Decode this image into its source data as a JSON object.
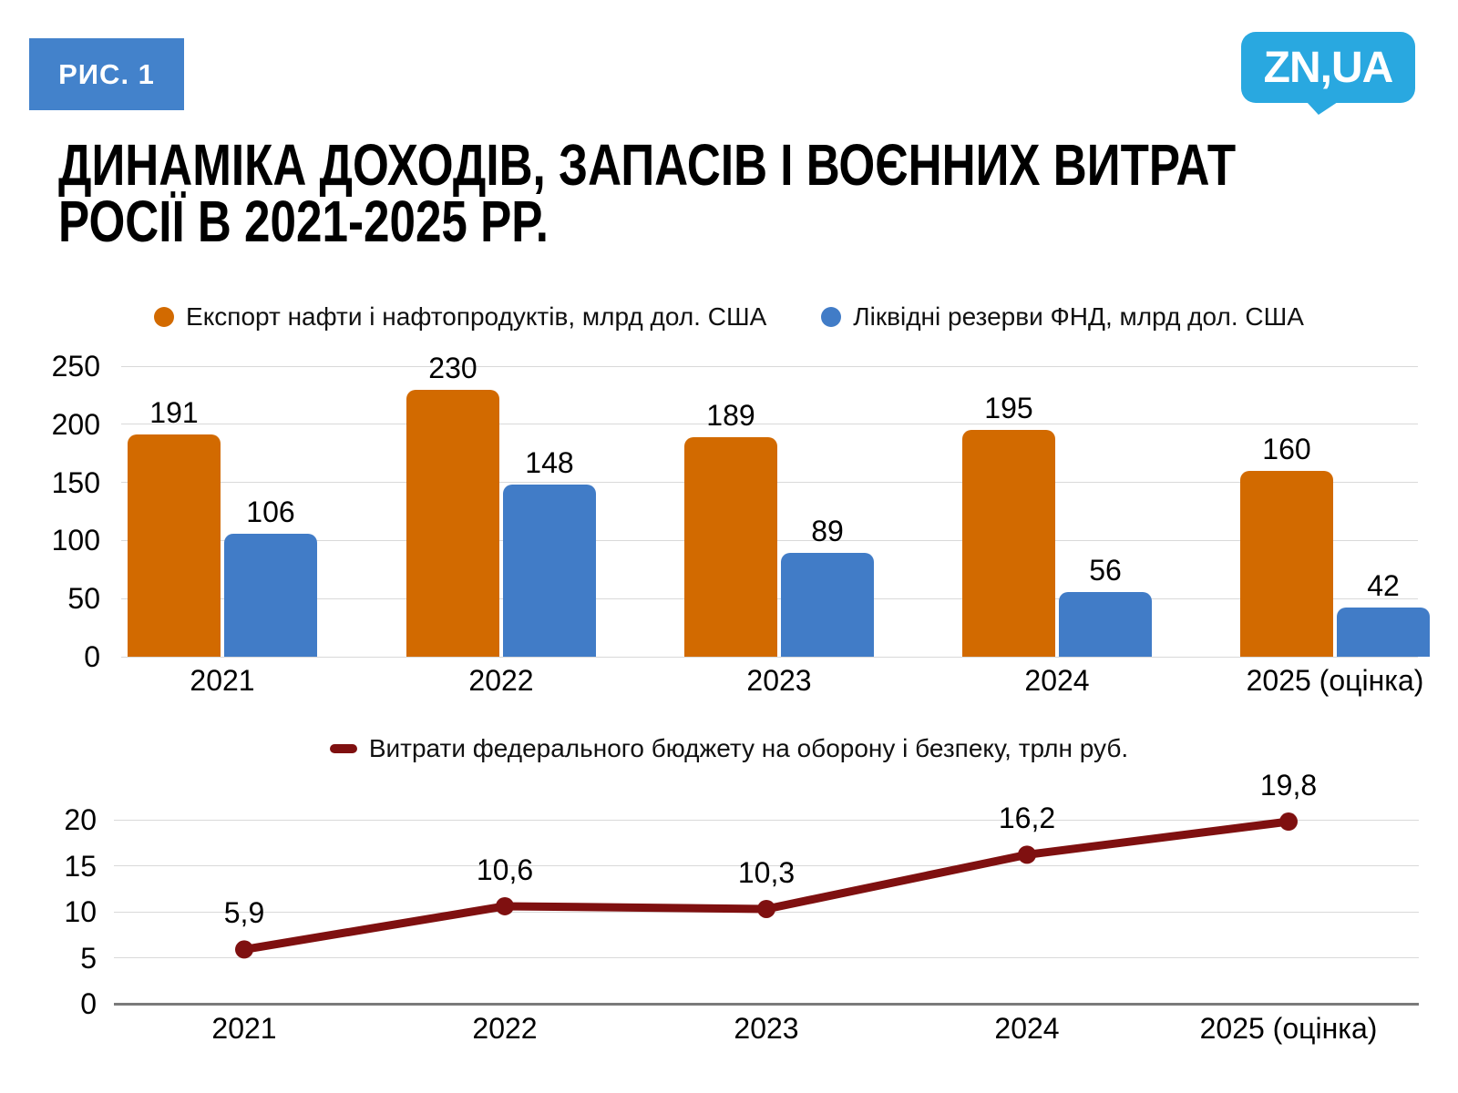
{
  "badge": {
    "label": "РИС. 1"
  },
  "logo": {
    "text": "ZN,UA"
  },
  "title": {
    "line1": "ДИНАМІКА ДОХОДІВ, ЗАПАСІВ І ВОЄННИХ ВИТРАТ",
    "line2": "РОСІЇ В 2021-2025 РР."
  },
  "colors": {
    "badge_blue": "#4382cb",
    "logo_blue": "#29a8e0",
    "orange": "#d26a00",
    "blue": "#417cc7",
    "maroon": "#7f1010",
    "gridline": "#d9d9d9",
    "axis_dark": "#7a7a7a",
    "text": "#000000"
  },
  "chart_data": [
    {
      "type": "bar",
      "categories": [
        "2021",
        "2022",
        "2023",
        "2024",
        "2025 (оцінка)"
      ],
      "series": [
        {
          "name": "Експорт нафти і нафтопродуктів, млрд дол. США",
          "color": "#d26a00",
          "values": [
            191,
            230,
            189,
            195,
            160
          ]
        },
        {
          "name": "Ліквідні резерви ФНД, млрд дол. США",
          "color": "#417cc7",
          "values": [
            106,
            148,
            89,
            56,
            42
          ]
        }
      ],
      "ylim": [
        0,
        250
      ],
      "yticks": [
        0,
        50,
        100,
        150,
        200,
        250
      ],
      "grid": true,
      "legend_position": "top",
      "xlabel": "",
      "ylabel": ""
    },
    {
      "type": "line",
      "categories": [
        "2021",
        "2022",
        "2023",
        "2024",
        "2025 (оцінка)"
      ],
      "series": [
        {
          "name": "Витрати федерального бюджету на оборону і безпеку, трлн руб.",
          "color": "#7f1010",
          "values": [
            5.9,
            10.6,
            10.3,
            16.2,
            19.8
          ],
          "labels": [
            "5,9",
            "10,6",
            "10,3",
            "16,2",
            "19,8"
          ]
        }
      ],
      "ylim": [
        0,
        20
      ],
      "yticks": [
        0,
        5,
        10,
        15,
        20
      ],
      "grid": true,
      "legend_position": "top",
      "xlabel": "",
      "ylabel": ""
    }
  ]
}
